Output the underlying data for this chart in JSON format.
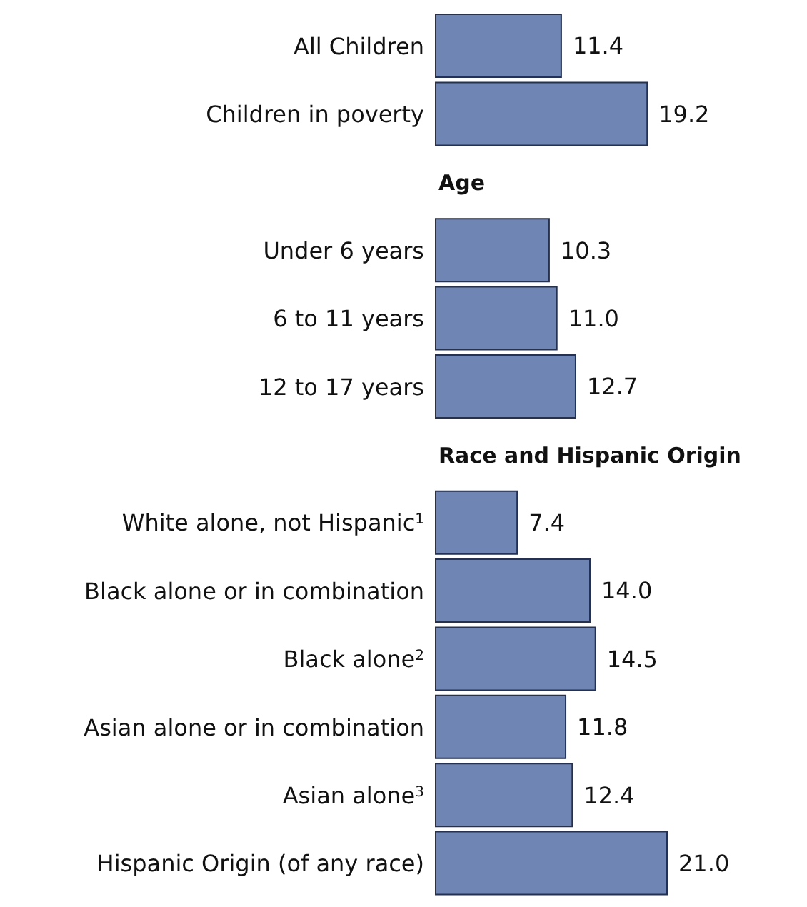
{
  "chart_data": {
    "type": "bar",
    "orientation": "horizontal",
    "color": "#6f86b4",
    "categories": [
      "All Children",
      "Children in poverty",
      "Age",
      "Under 6 years",
      "6 to 11 years",
      "12 to 17 years",
      "Race and Hispanic Origin",
      "White alone, not Hispanic$^{1}$",
      "Black alone or in combination",
      "Black alone$^{2}$",
      "Asian alone or in combination",
      "Asian alone$^{3}$",
      "Hispanic Origin (of any race)"
    ],
    "values": [
      11.4,
      19.2,
      null,
      10.3,
      11.0,
      12.7,
      null,
      7.4,
      14.0,
      14.5,
      11.8,
      12.4,
      21.0
    ],
    "value_labels": [
      "11.4",
      "19.2",
      null,
      "10.3",
      "11.0",
      "12.7",
      null,
      "7.4",
      "14.0",
      "14.5",
      "11.8",
      "12.4",
      "21.0"
    ],
    "grid": false,
    "legend": false
  }
}
